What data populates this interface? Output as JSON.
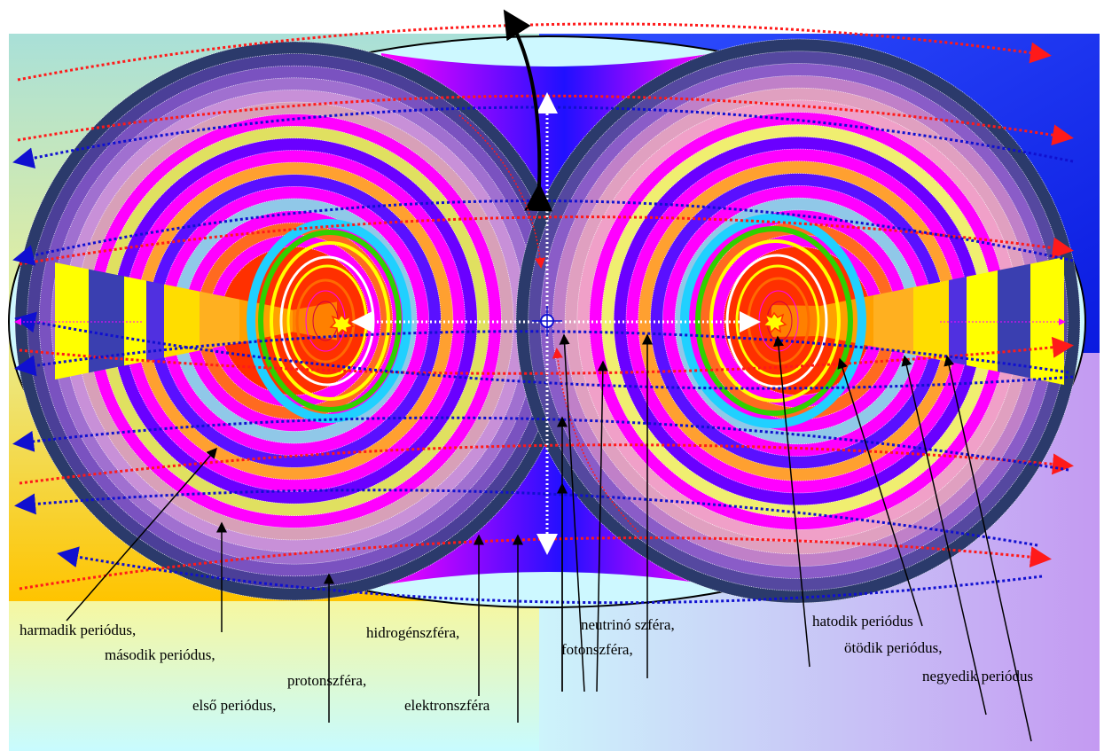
{
  "labels": {
    "harmadik": "harmadik periódus,",
    "masodik": "második periódus,",
    "elso": "első periódus,",
    "protonszfera": "protonszféra,",
    "hidrogenszfera": "hidrogénszféra,",
    "elektronszfera": "elektronszféra",
    "neutrinoszfera": "neutrinó szféra,",
    "fotonszfera": "fotonszféra,",
    "hatodik": "hatodik periódus",
    "otodik": "ötödik periódus,",
    "negyedik": "negyedik periódus"
  },
  "colors": {
    "red_arrow": "#ff1a1a",
    "blue_arrow": "#1010d0",
    "magenta": "#ff00ff",
    "violet": "#6a00ff",
    "yellow": "#ffff00",
    "band_orange": "#ffa000",
    "outline": "#000000"
  },
  "icons": {
    "nucleus_left": "star-nucleus-icon",
    "nucleus_right": "star-nucleus-icon",
    "center_point": "center-node-icon"
  }
}
